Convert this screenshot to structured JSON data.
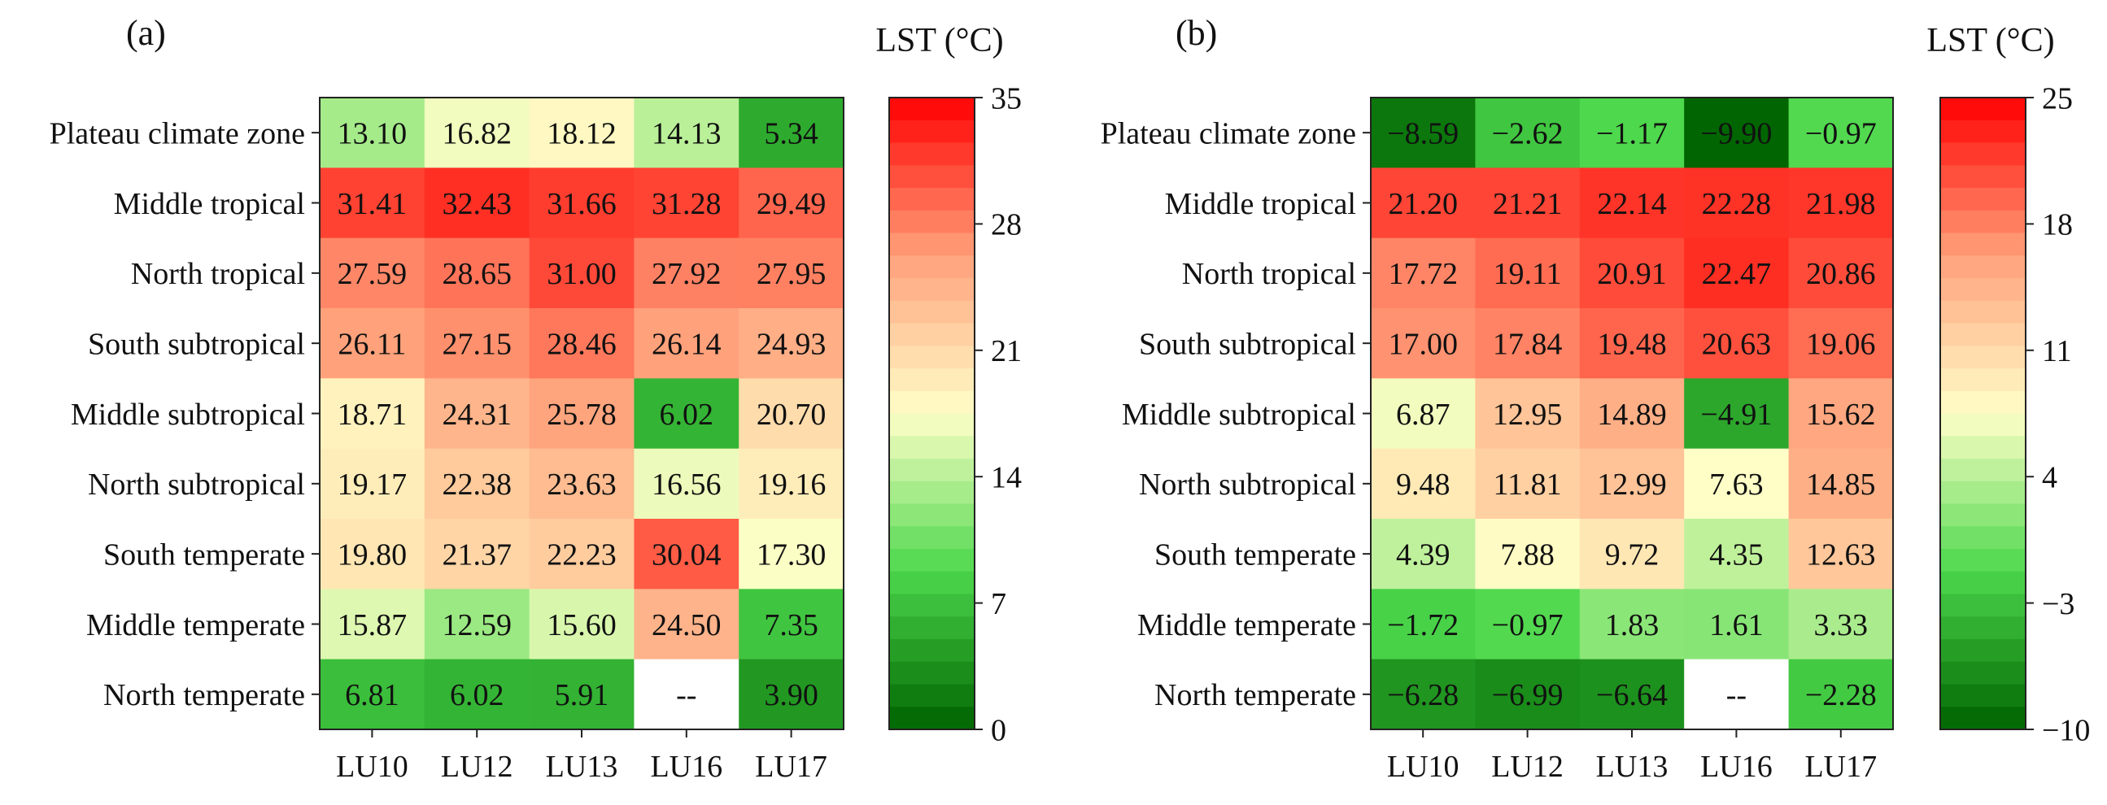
{
  "chart_data": [
    {
      "type": "heatmap",
      "panel_label": "(a)",
      "colorbar_title": "LST (°C)",
      "columns": [
        "LU10",
        "LU12",
        "LU13",
        "LU16",
        "LU17"
      ],
      "rows": [
        "Plateau climate zone",
        "Middle tropical",
        "North tropical",
        "South subtropical",
        "Middle subtropical",
        "North subtropical",
        "South temperate",
        "Middle temperate",
        "North temperate"
      ],
      "values": [
        [
          13.1,
          16.82,
          18.12,
          14.13,
          5.34
        ],
        [
          31.41,
          32.43,
          31.66,
          31.28,
          29.49
        ],
        [
          27.59,
          28.65,
          31.0,
          27.92,
          27.95
        ],
        [
          26.11,
          27.15,
          28.46,
          26.14,
          24.93
        ],
        [
          18.71,
          24.31,
          25.78,
          6.02,
          20.7
        ],
        [
          19.17,
          22.38,
          23.63,
          16.56,
          19.16
        ],
        [
          19.8,
          21.37,
          22.23,
          30.04,
          17.3
        ],
        [
          15.87,
          12.59,
          15.6,
          24.5,
          7.35
        ],
        [
          6.81,
          6.02,
          5.91,
          null,
          3.9
        ]
      ],
      "labels": [
        [
          "13.10",
          "16.82",
          "18.12",
          "14.13",
          "5.34"
        ],
        [
          "31.41",
          "32.43",
          "31.66",
          "31.28",
          "29.49"
        ],
        [
          "27.59",
          "28.65",
          "31.00",
          "27.92",
          "27.95"
        ],
        [
          "26.11",
          "27.15",
          "28.46",
          "26.14",
          "24.93"
        ],
        [
          "18.71",
          "24.31",
          "25.78",
          "6.02",
          "20.70"
        ],
        [
          "19.17",
          "22.38",
          "23.63",
          "16.56",
          "19.16"
        ],
        [
          "19.80",
          "21.37",
          "22.23",
          "30.04",
          "17.30"
        ],
        [
          "15.87",
          "12.59",
          "15.60",
          "24.50",
          "7.35"
        ],
        [
          "6.81",
          "6.02",
          "5.91",
          "--",
          "3.90"
        ]
      ],
      "color_range": [
        0,
        35
      ],
      "colorbar_ticks": [
        0,
        7,
        14,
        21,
        28,
        35
      ],
      "colorbar_tick_labels": [
        "0",
        "7",
        "14",
        "21",
        "28",
        "35"
      ]
    },
    {
      "type": "heatmap",
      "panel_label": "(b)",
      "colorbar_title": "LST (°C)",
      "columns": [
        "LU10",
        "LU12",
        "LU13",
        "LU16",
        "LU17"
      ],
      "rows": [
        "Plateau climate zone",
        "Middle tropical",
        "North tropical",
        "South subtropical",
        "Middle subtropical",
        "North subtropical",
        "South temperate",
        "Middle temperate",
        "North temperate"
      ],
      "values": [
        [
          -8.59,
          -2.62,
          -1.17,
          -9.9,
          -0.97
        ],
        [
          21.2,
          21.21,
          22.14,
          22.28,
          21.98
        ],
        [
          17.72,
          19.11,
          20.91,
          22.47,
          20.86
        ],
        [
          17.0,
          17.84,
          19.48,
          20.63,
          19.06
        ],
        [
          6.87,
          12.95,
          14.89,
          -4.91,
          15.62
        ],
        [
          9.48,
          11.81,
          12.99,
          7.63,
          14.85
        ],
        [
          4.39,
          7.88,
          9.72,
          4.35,
          12.63
        ],
        [
          -1.72,
          -0.97,
          1.83,
          1.61,
          3.33
        ],
        [
          -6.28,
          -6.99,
          -6.64,
          null,
          -2.28
        ]
      ],
      "labels": [
        [
          "−8.59",
          "−2.62",
          "−1.17",
          "−9.90",
          "−0.97"
        ],
        [
          "21.20",
          "21.21",
          "22.14",
          "22.28",
          "21.98"
        ],
        [
          "17.72",
          "19.11",
          "20.91",
          "22.47",
          "20.86"
        ],
        [
          "17.00",
          "17.84",
          "19.48",
          "20.63",
          "19.06"
        ],
        [
          "6.87",
          "12.95",
          "14.89",
          "−4.91",
          "15.62"
        ],
        [
          "9.48",
          "11.81",
          "12.99",
          "7.63",
          "14.85"
        ],
        [
          "4.39",
          "7.88",
          "9.72",
          "4.35",
          "12.63"
        ],
        [
          "−1.72",
          "−0.97",
          "1.83",
          "1.61",
          "3.33"
        ],
        [
          "−6.28",
          "−6.99",
          "−6.64",
          "--",
          "−2.28"
        ]
      ],
      "color_range": [
        -10,
        25
      ],
      "colorbar_ticks": [
        -10,
        -3,
        4,
        11,
        18,
        25
      ],
      "colorbar_tick_labels": [
        "−10",
        "−3",
        "4",
        "11",
        "18",
        "25"
      ]
    }
  ],
  "colors": {
    "scale_low": "#006400",
    "scale_low_mid": "#4cd84c",
    "scale_mid": "#ffffc8",
    "scale_mid_high": "#ffa07a",
    "scale_high": "#ff0000",
    "missing": "#ffffff",
    "text": "#111111",
    "axis": "#222222"
  }
}
